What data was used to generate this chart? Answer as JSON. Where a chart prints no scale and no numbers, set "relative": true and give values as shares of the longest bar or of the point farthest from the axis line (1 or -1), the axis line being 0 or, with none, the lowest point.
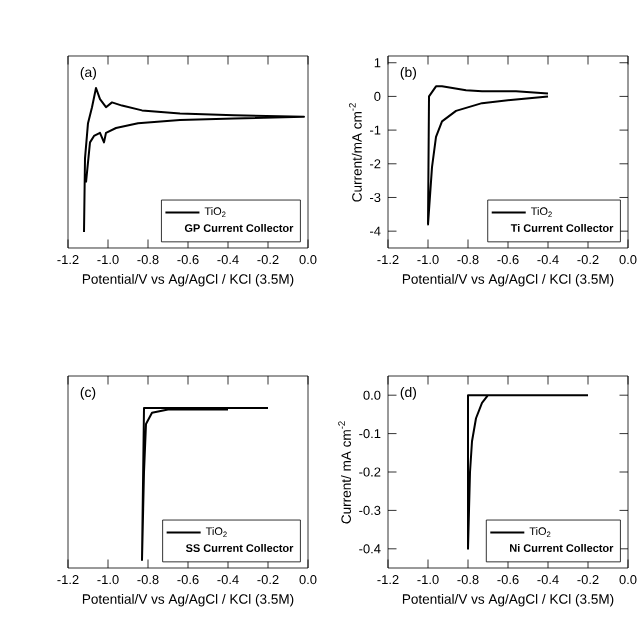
{
  "chart_data": [
    {
      "type": "line",
      "relative": true,
      "annotations": [
        "(a)"
      ],
      "xlabel": "Potential/V vs Ag/AgCl / KCl (3.5M)",
      "xlim": [
        -1.2,
        0
      ],
      "xticks": [
        {
          "value": -1.2,
          "label": "-1.2"
        },
        {
          "value": -1.0,
          "label": "-1.0"
        },
        {
          "value": -0.8,
          "label": "-0.8"
        },
        {
          "value": -0.6,
          "label": "-0.6"
        },
        {
          "value": -0.4,
          "label": "-0.4"
        },
        {
          "value": -0.2,
          "label": "-0.2"
        },
        {
          "value": 0,
          "label": "0.0"
        }
      ],
      "tick_labels": "x",
      "legend": "bottom right",
      "legend_title": "GP Current Collector",
      "series": [
        {
          "name": "TiO$_{2}$",
          "color": "#000000",
          "x": [
            -1.12,
            -1.115,
            -1.1,
            -1.08,
            -1.06,
            -1.04,
            -1.01,
            -0.98,
            -0.93,
            -0.83,
            -0.64,
            -0.37,
            -0.02,
            -0.37,
            -0.64,
            -0.85,
            -0.96,
            -1.01,
            -1.02,
            -1.04,
            -1.07,
            -1.09,
            -1.11
          ],
          "values": [
            0.1,
            0.56,
            0.78,
            0.88,
            1.0,
            0.93,
            0.88,
            0.91,
            0.89,
            0.86,
            0.84,
            0.83,
            0.82,
            0.81,
            0.8,
            0.78,
            0.75,
            0.72,
            0.66,
            0.72,
            0.7,
            0.66,
            0.41
          ]
        }
      ]
    },
    {
      "type": "line",
      "annotations": [
        "(b)"
      ],
      "xlabel": "Potential/V vs Ag/AgCl / KCl (3.5M)",
      "ylabel": "Current/mA cm$^{-2}$",
      "xlim": [
        -1.2,
        0
      ],
      "xticks": [
        {
          "value": -1.2,
          "label": "-1.2"
        },
        {
          "value": -1.0,
          "label": "-1.0"
        },
        {
          "value": -0.8,
          "label": "-0.8"
        },
        {
          "value": -0.6,
          "label": "-0.6"
        },
        {
          "value": -0.4,
          "label": "-0.4"
        },
        {
          "value": -0.2,
          "label": "-0.2"
        },
        {
          "value": 0,
          "label": "0.0"
        }
      ],
      "ylim": [
        -4.5,
        1.2
      ],
      "yticks": [
        -4,
        -3,
        -2,
        -1,
        0,
        1
      ],
      "legend": "bottom right",
      "legend_title": "Ti Current Collector",
      "series": [
        {
          "name": "TiO$_{2}$",
          "color": "#000000",
          "x": [
            -0.4,
            -0.56,
            -0.73,
            -0.81,
            -0.93,
            -0.96,
            -0.995,
            -1.0,
            -0.98,
            -0.96,
            -0.93,
            -0.86,
            -0.73,
            -0.56,
            -0.4
          ],
          "values": [
            0.09,
            0.15,
            0.15,
            0.18,
            0.3,
            0.3,
            0.0,
            -3.8,
            -2.1,
            -1.2,
            -0.74,
            -0.43,
            -0.2,
            -0.09,
            0.0
          ]
        }
      ]
    },
    {
      "type": "line",
      "relative": true,
      "annotations": [
        "(c)"
      ],
      "xlabel": "Potential/V vs Ag/AgCl / KCl (3.5M)",
      "xlim": [
        -1.2,
        0
      ],
      "xticks": [
        {
          "value": -1.2,
          "label": "-1.2"
        },
        {
          "value": -1.0,
          "label": "-1.0"
        },
        {
          "value": -0.8,
          "label": "-0.8"
        },
        {
          "value": -0.6,
          "label": "-0.6"
        },
        {
          "value": -0.4,
          "label": "-0.4"
        },
        {
          "value": -0.2,
          "label": "-0.2"
        },
        {
          "value": 0,
          "label": "0.0"
        }
      ],
      "tick_labels": "x",
      "legend": "bottom right",
      "legend_title": "SS Current Collector",
      "series": [
        {
          "name": "TiO$_{2}$",
          "color": "#000000",
          "x": [
            -0.2,
            -0.82,
            -0.83,
            -0.82,
            -0.81,
            -0.78,
            -0.7,
            -0.4
          ],
          "values": [
            1.0,
            1.0,
            0.05,
            0.6,
            0.9,
            0.97,
            0.99,
            0.99
          ]
        }
      ]
    },
    {
      "type": "line",
      "annotations": [
        "(d)"
      ],
      "xlabel": "Potential/V vs Ag/AgCl / KCl (3.5M)",
      "ylabel": "Current/ mA cm$^{-2}$",
      "xlim": [
        -1.2,
        0
      ],
      "xticks": [
        {
          "value": -1.2,
          "label": "-1.2"
        },
        {
          "value": -1.0,
          "label": "-1.0"
        },
        {
          "value": -0.8,
          "label": "-0.8"
        },
        {
          "value": -0.6,
          "label": "-0.6"
        },
        {
          "value": -0.4,
          "label": "-0.4"
        },
        {
          "value": -0.2,
          "label": "-0.2"
        },
        {
          "value": 0,
          "label": "0.0"
        }
      ],
      "ylim": [
        -0.45,
        0.05
      ],
      "yticks": [
        {
          "value": -0.4,
          "label": "-0.4"
        },
        {
          "value": -0.3,
          "label": "-0.3"
        },
        {
          "value": -0.2,
          "label": "-0.2"
        },
        {
          "value": -0.1,
          "label": "-0.1"
        },
        {
          "value": 0,
          "label": "0.0"
        }
      ],
      "legend": "bottom right",
      "legend_title": "Ni Current Collector",
      "series": [
        {
          "name": "TiO$_{2}$",
          "color": "#000000",
          "x": [
            -0.2,
            -0.8,
            -0.8,
            -0.79,
            -0.78,
            -0.76,
            -0.73,
            -0.7,
            -0.3
          ],
          "values": [
            0.0,
            0.0,
            -0.4,
            -0.2,
            -0.12,
            -0.06,
            -0.02,
            0.0,
            0.0
          ]
        }
      ]
    }
  ]
}
